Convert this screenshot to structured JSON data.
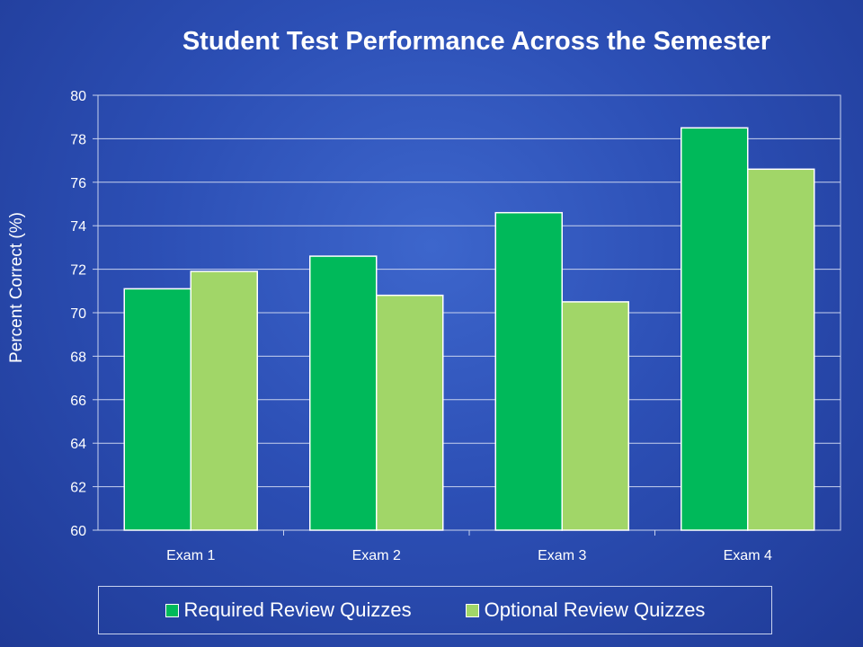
{
  "chart_data": {
    "type": "bar",
    "title": "Student Test Performance Across the Semester",
    "xlabel": "",
    "ylabel": "Percent Correct (%)",
    "categories": [
      "Exam 1",
      "Exam 2",
      "Exam 3",
      "Exam 4"
    ],
    "ylim": [
      60,
      80
    ],
    "yticks": [
      60,
      62,
      64,
      66,
      68,
      70,
      72,
      74,
      76,
      78,
      80
    ],
    "grid": true,
    "legend_position": "bottom",
    "series": [
      {
        "name": "Required Review Quizzes",
        "color": "#00b95a",
        "values": [
          71.1,
          72.6,
          74.6,
          78.5
        ]
      },
      {
        "name": "Optional Review Quizzes",
        "color": "#a1d668",
        "values": [
          71.9,
          70.8,
          70.5,
          76.6
        ]
      }
    ]
  }
}
